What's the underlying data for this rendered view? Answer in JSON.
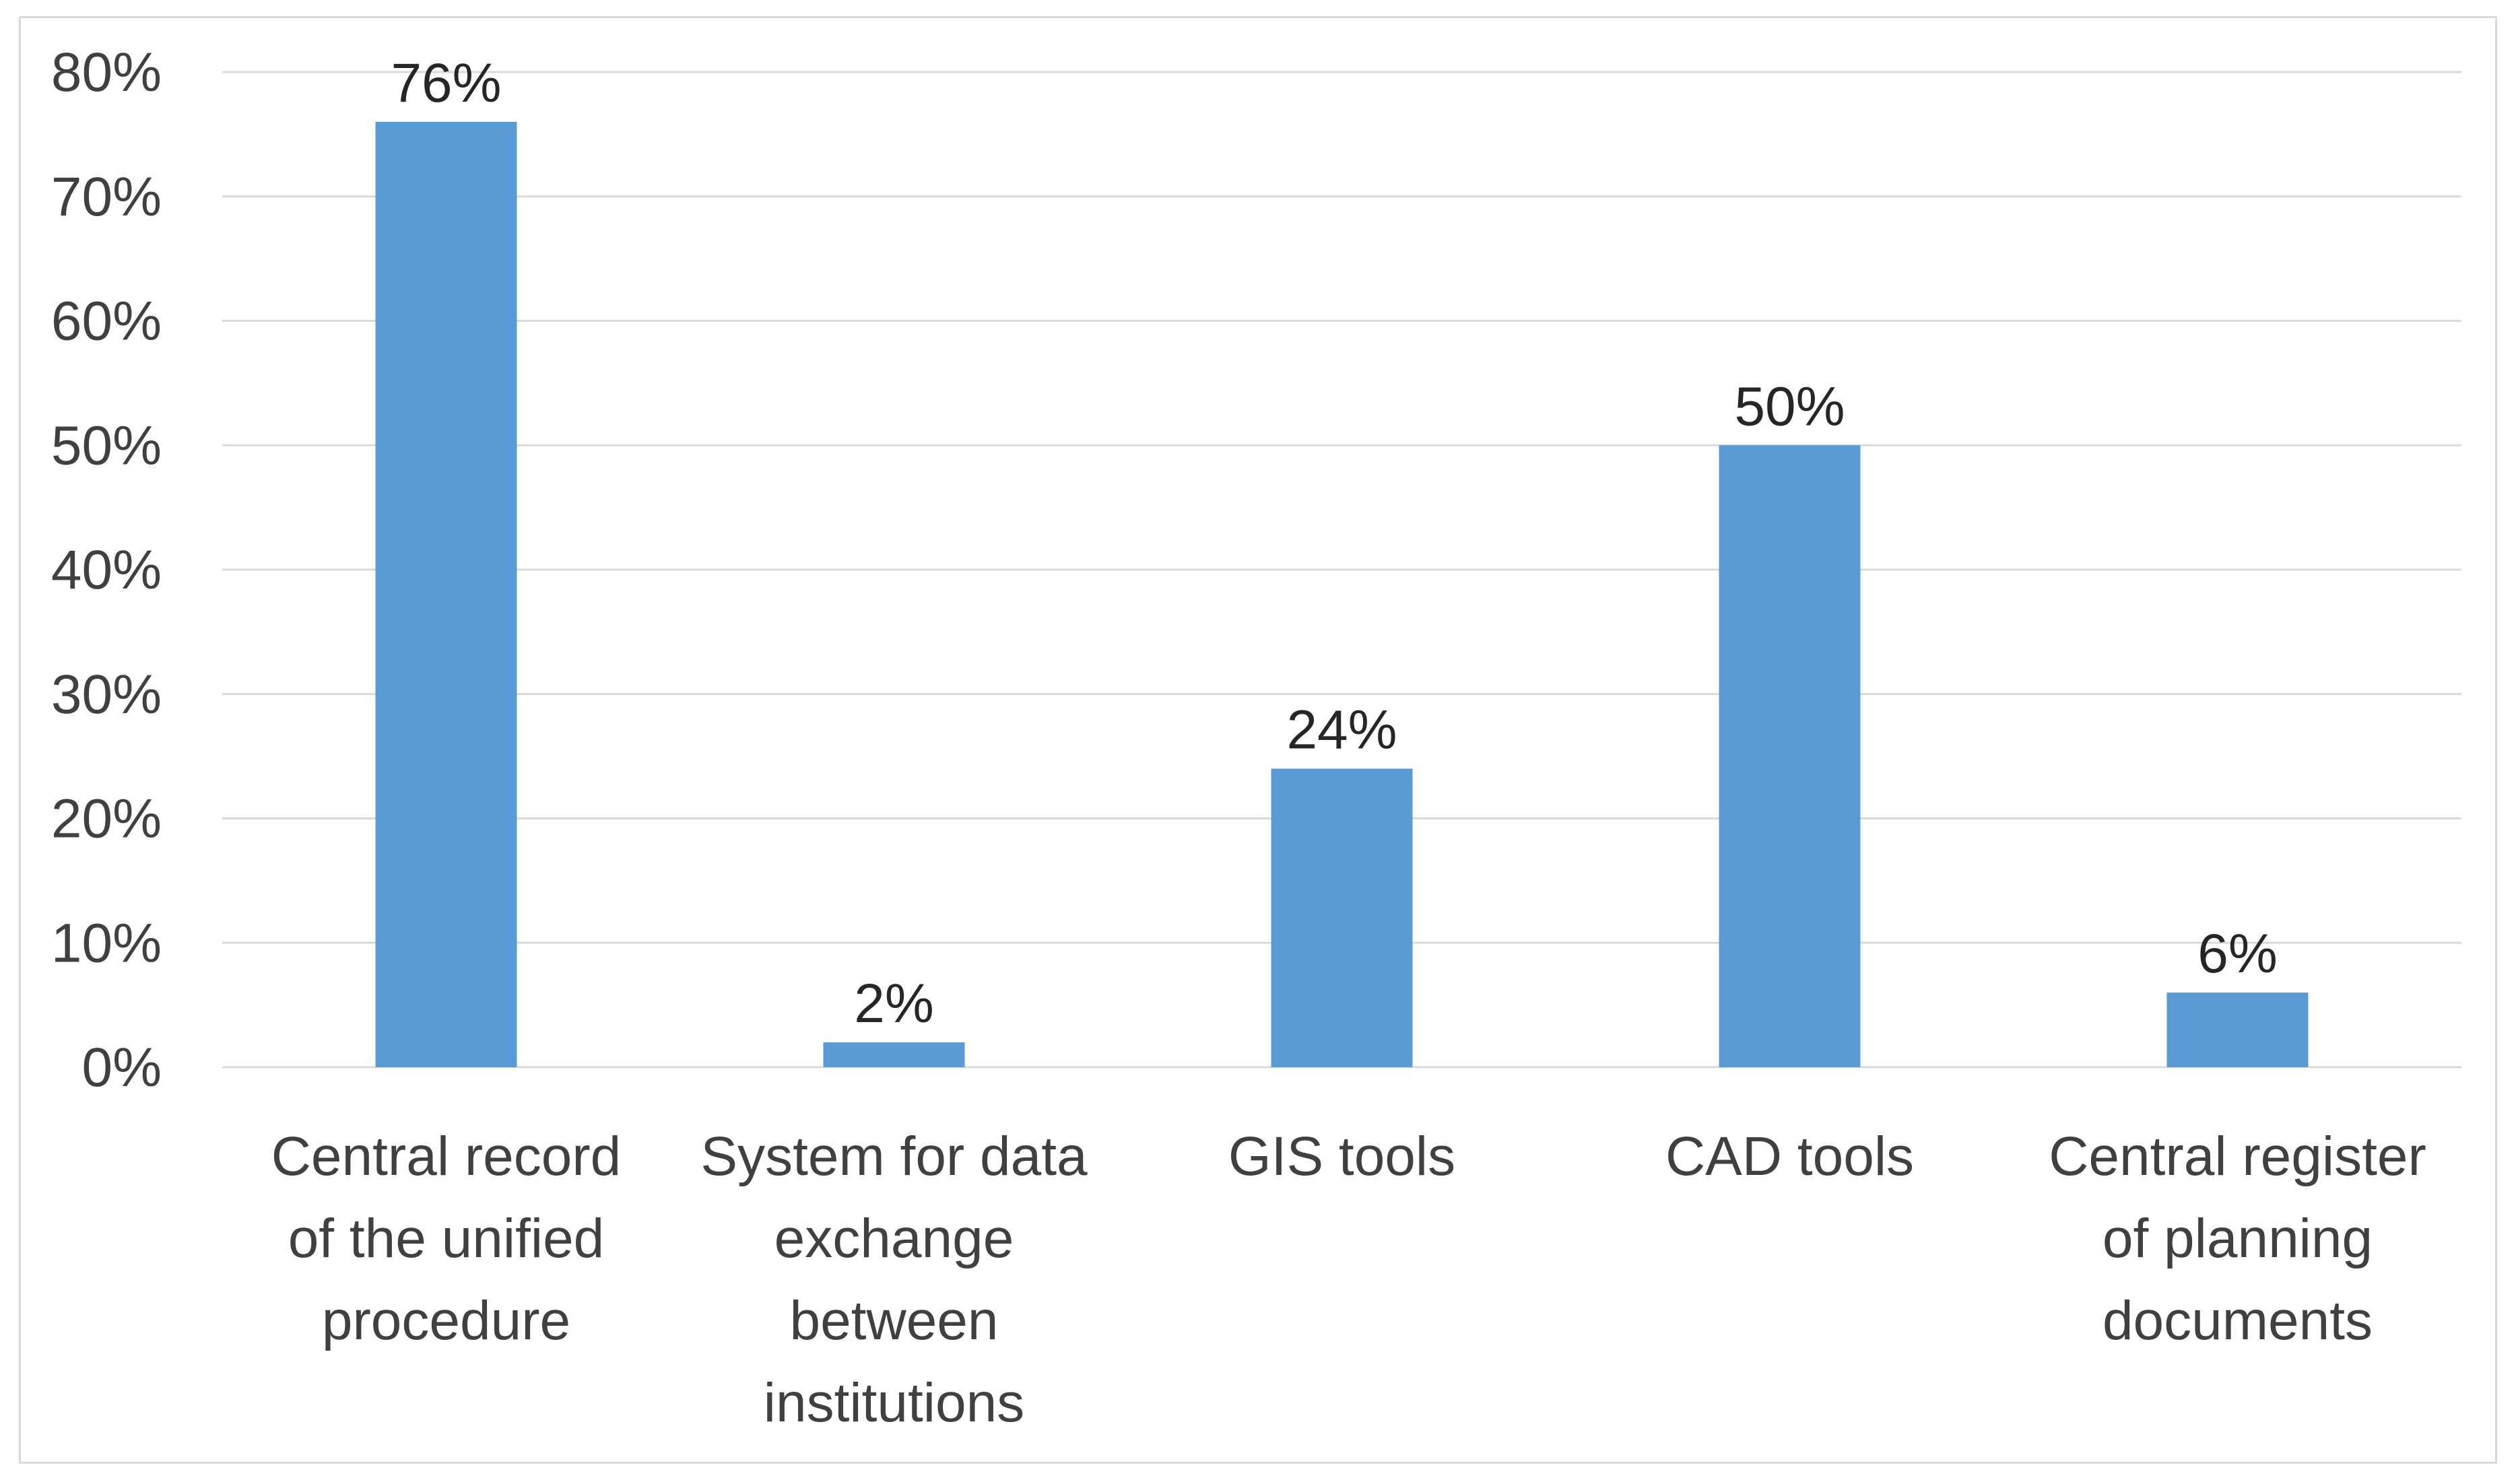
{
  "chart_data": {
    "type": "bar",
    "categories": [
      [
        "Central record",
        "of the unified",
        "procedure"
      ],
      [
        "System for data",
        "exchange",
        "between",
        "institutions"
      ],
      [
        "GIS tools"
      ],
      [
        "CAD tools"
      ],
      [
        "Central register",
        "of planning",
        "documents"
      ]
    ],
    "values": [
      76,
      2,
      24,
      50,
      6
    ],
    "data_labels": [
      "76%",
      "2%",
      "24%",
      "50%",
      "6%"
    ],
    "ylim": [
      0,
      80
    ],
    "yticks": [
      0,
      10,
      20,
      30,
      40,
      50,
      60,
      70,
      80
    ],
    "ytick_labels": [
      "0%",
      "10%",
      "20%",
      "30%",
      "40%",
      "50%",
      "60%",
      "70%",
      "80%"
    ],
    "grid": true,
    "legend": "none",
    "bar_color": "#5b9bd5",
    "grid_color": "#d9d9d9"
  }
}
